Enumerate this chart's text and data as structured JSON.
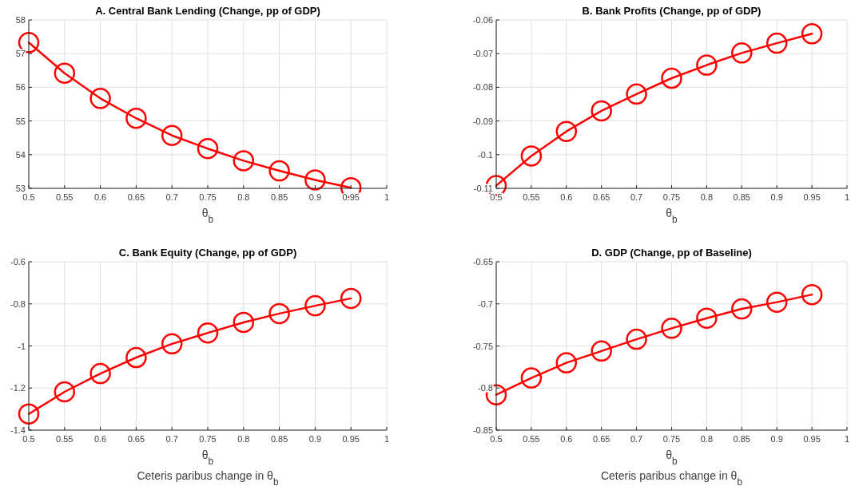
{
  "chart_data": [
    {
      "type": "line",
      "title": "A. Central Bank Lending (Change, pp of GDP)",
      "xlabel": "θ$_{b}$",
      "x": [
        0.5,
        0.55,
        0.6,
        0.65,
        0.7,
        0.75,
        0.8,
        0.85,
        0.9,
        0.95
      ],
      "series": [
        {
          "color": "#ff0000",
          "values": [
            57.33,
            56.42,
            55.67,
            55.08,
            54.57,
            54.18,
            53.82,
            53.52,
            53.25,
            53.02
          ]
        }
      ],
      "xlim": [
        0.5,
        1
      ],
      "xticks": [
        0.5,
        0.55,
        0.6,
        0.65,
        0.7,
        0.75,
        0.8,
        0.85,
        0.9,
        0.95,
        1
      ],
      "ylim": [
        53,
        58
      ],
      "yticks": [
        53,
        54,
        55,
        56,
        57,
        58
      ],
      "grid": true,
      "marker": "circle",
      "line_style": "solid"
    },
    {
      "type": "line",
      "title": "B. Bank Profits (Change, pp of GDP)",
      "xlabel": "θ$_{b}$",
      "x": [
        0.5,
        0.55,
        0.6,
        0.65,
        0.7,
        0.75,
        0.8,
        0.85,
        0.9,
        0.95
      ],
      "series": [
        {
          "color": "#ff0000",
          "values": [
            -0.1092,
            -0.1004,
            -0.0931,
            -0.087,
            -0.082,
            -0.0773,
            -0.0734,
            -0.0698,
            -0.0669,
            -0.0641
          ]
        }
      ],
      "xlim": [
        0.5,
        1
      ],
      "xticks": [
        0.5,
        0.55,
        0.6,
        0.65,
        0.7,
        0.75,
        0.8,
        0.85,
        0.9,
        0.95,
        1
      ],
      "ylim": [
        -0.11,
        -0.06
      ],
      "yticks": [
        -0.11,
        -0.1,
        -0.09,
        -0.08,
        -0.07,
        -0.06
      ],
      "grid": true,
      "marker": "circle",
      "line_style": "solid"
    },
    {
      "type": "line",
      "title": "C. Bank Equity (Change, pp of GDP)",
      "xlabel": "θ$_{b}$",
      "annotations": [
        "Ceteris paribus change in θ$_{b}$"
      ],
      "x": [
        0.5,
        0.55,
        0.6,
        0.65,
        0.7,
        0.75,
        0.8,
        0.85,
        0.9,
        0.95
      ],
      "series": [
        {
          "color": "#ff0000",
          "values": [
            -1.323,
            -1.218,
            -1.131,
            -1.055,
            -0.99,
            -0.938,
            -0.888,
            -0.846,
            -0.809,
            -0.774
          ]
        }
      ],
      "xlim": [
        0.5,
        1
      ],
      "xticks": [
        0.5,
        0.55,
        0.6,
        0.65,
        0.7,
        0.75,
        0.8,
        0.85,
        0.9,
        0.95,
        1
      ],
      "ylim": [
        -1.4,
        -0.6
      ],
      "yticks": [
        -1.4,
        -1.2,
        -1,
        -0.8,
        -0.6
      ],
      "grid": true,
      "marker": "circle",
      "line_style": "solid"
    },
    {
      "type": "line",
      "title": "D. GDP (Change, pp of Baseline)",
      "xlabel": "θ$_{b}$",
      "annotations": [
        "Ceteris paribus change in θ$_{b}$"
      ],
      "x": [
        0.5,
        0.55,
        0.6,
        0.65,
        0.7,
        0.75,
        0.8,
        0.85,
        0.9,
        0.95
      ],
      "series": [
        {
          "color": "#ff0000",
          "values": [
            -0.808,
            -0.788,
            -0.77,
            -0.756,
            -0.742,
            -0.729,
            -0.717,
            -0.706,
            -0.698,
            -0.689
          ]
        }
      ],
      "xlim": [
        0.5,
        1
      ],
      "xticks": [
        0.5,
        0.55,
        0.6,
        0.65,
        0.7,
        0.75,
        0.8,
        0.85,
        0.9,
        0.95,
        1
      ],
      "ylim": [
        -0.85,
        -0.65
      ],
      "yticks": [
        -0.85,
        -0.8,
        -0.75,
        -0.7,
        -0.65
      ],
      "grid": true,
      "marker": "circle",
      "line_style": "solid"
    }
  ]
}
